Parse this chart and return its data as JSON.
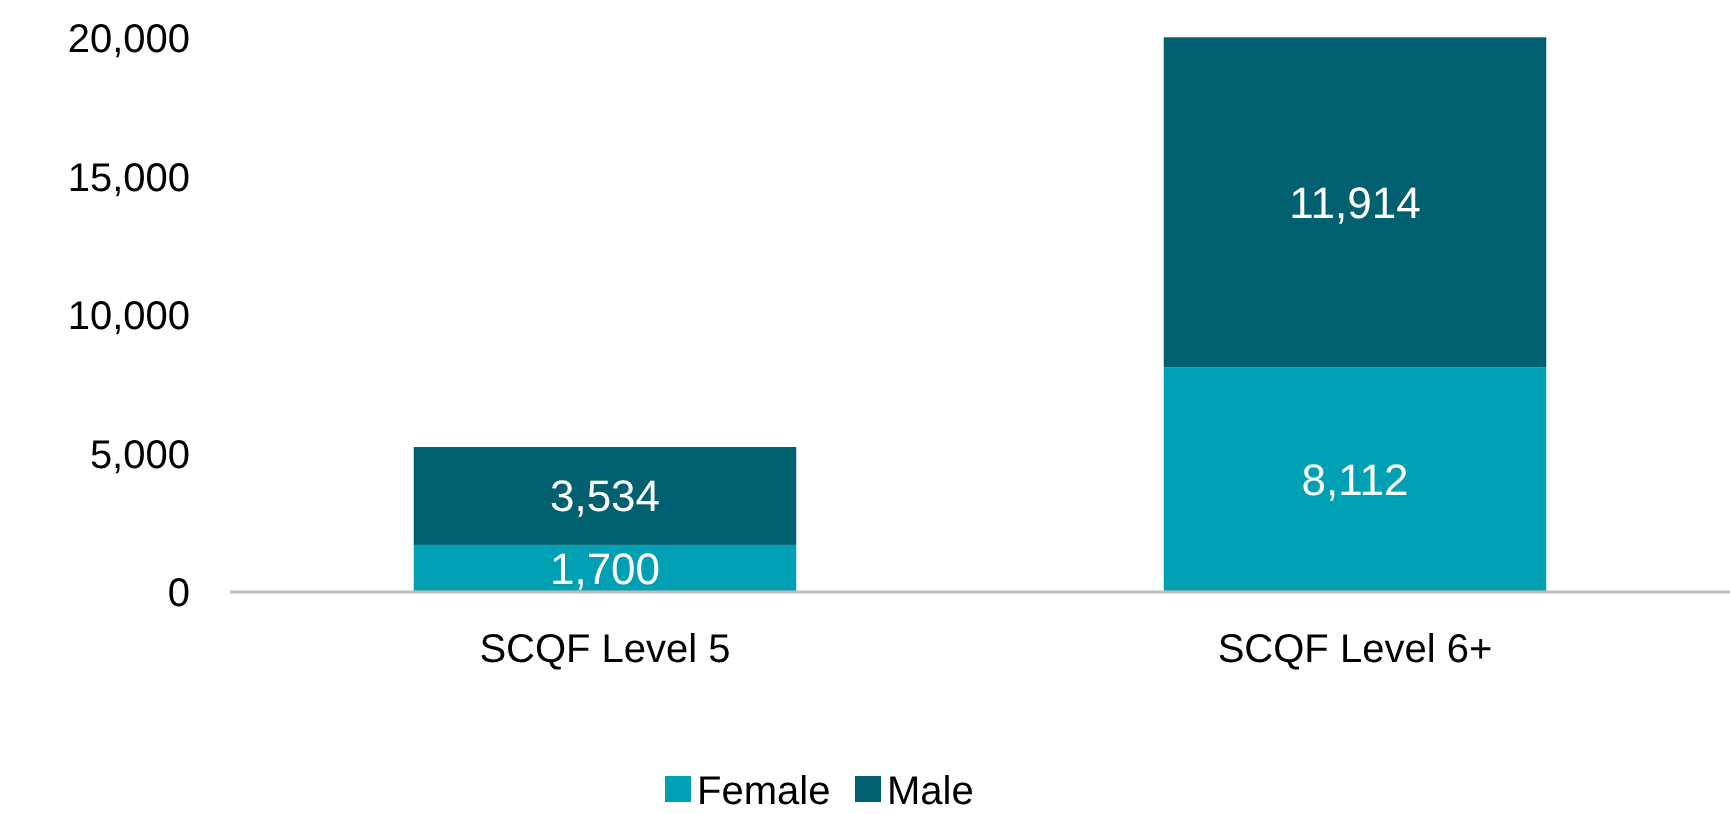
{
  "chart_data": {
    "type": "bar",
    "stacked": true,
    "categories": [
      "SCQF Level 5",
      "SCQF Level 6+"
    ],
    "series": [
      {
        "name": "Female",
        "color": "#00a0b4",
        "values": [
          1700,
          8112
        ],
        "value_labels": [
          "1,700",
          "8,112"
        ]
      },
      {
        "name": "Male",
        "color": "#006070",
        "values": [
          3534,
          11914
        ],
        "value_labels": [
          "3,534",
          "11,914"
        ]
      }
    ],
    "ylim": [
      0,
      20000
    ],
    "yticks": [
      {
        "value": 0,
        "label": "0"
      },
      {
        "value": 5000,
        "label": "5,000"
      },
      {
        "value": 10000,
        "label": "10,000"
      },
      {
        "value": 15000,
        "label": "15,000"
      },
      {
        "value": 20000,
        "label": "20,000"
      }
    ],
    "legend": "bottom",
    "grid": false
  }
}
